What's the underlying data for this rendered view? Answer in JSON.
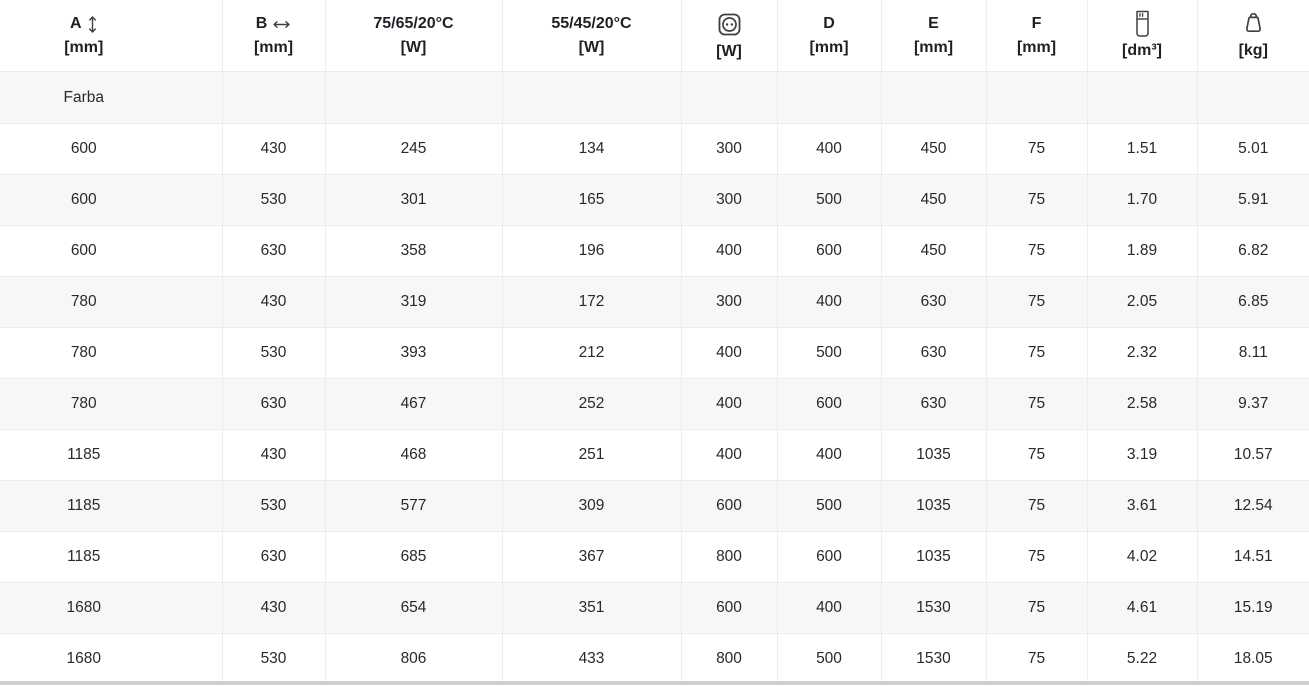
{
  "colors": {
    "stripe": "#f7f7f8",
    "border": "#ececef",
    "header_text": "#1d2126",
    "body_text": "#26292e",
    "icon": "#3c4045",
    "scrollbar": "#ccd0d5"
  },
  "table": {
    "columns": [
      {
        "id": "a",
        "label": "A",
        "icon": "height-arrow-icon",
        "unit": "[mm]"
      },
      {
        "id": "b",
        "label": "B",
        "icon": "width-arrow-icon",
        "unit": "[mm]"
      },
      {
        "id": "output-75-65-20",
        "label": "75/65/20°C",
        "unit": "[W]"
      },
      {
        "id": "output-55-45-20",
        "label": "55/45/20°C",
        "unit": "[W]"
      },
      {
        "id": "power",
        "icon": "power-socket-icon",
        "unit": "[W]"
      },
      {
        "id": "d",
        "label": "D",
        "unit": "[mm]"
      },
      {
        "id": "e",
        "label": "E",
        "unit": "[mm]"
      },
      {
        "id": "f",
        "label": "F",
        "unit": "[mm]"
      },
      {
        "id": "volume",
        "icon": "water-volume-icon",
        "unit": "[dm³]"
      },
      {
        "id": "weight",
        "icon": "weight-icon",
        "unit": "[kg]"
      }
    ],
    "farba_row_label": "Farba",
    "rows": [
      [
        "600",
        "430",
        "245",
        "134",
        "300",
        "400",
        "450",
        "75",
        "1.51",
        "5.01"
      ],
      [
        "600",
        "530",
        "301",
        "165",
        "300",
        "500",
        "450",
        "75",
        "1.70",
        "5.91"
      ],
      [
        "600",
        "630",
        "358",
        "196",
        "400",
        "600",
        "450",
        "75",
        "1.89",
        "6.82"
      ],
      [
        "780",
        "430",
        "319",
        "172",
        "300",
        "400",
        "630",
        "75",
        "2.05",
        "6.85"
      ],
      [
        "780",
        "530",
        "393",
        "212",
        "400",
        "500",
        "630",
        "75",
        "2.32",
        "8.11"
      ],
      [
        "780",
        "630",
        "467",
        "252",
        "400",
        "600",
        "630",
        "75",
        "2.58",
        "9.37"
      ],
      [
        "1185",
        "430",
        "468",
        "251",
        "400",
        "400",
        "1035",
        "75",
        "3.19",
        "10.57"
      ],
      [
        "1185",
        "530",
        "577",
        "309",
        "600",
        "500",
        "1035",
        "75",
        "3.61",
        "12.54"
      ],
      [
        "1185",
        "630",
        "685",
        "367",
        "800",
        "600",
        "1035",
        "75",
        "4.02",
        "14.51"
      ],
      [
        "1680",
        "430",
        "654",
        "351",
        "600",
        "400",
        "1530",
        "75",
        "4.61",
        "15.19"
      ],
      [
        "1680",
        "530",
        "806",
        "433",
        "800",
        "500",
        "1530",
        "75",
        "5.22",
        "18.05"
      ]
    ]
  }
}
